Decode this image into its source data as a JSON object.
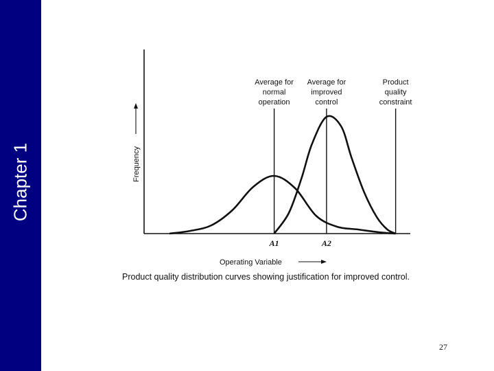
{
  "slide": {
    "sidebar_title": "Chapter 1",
    "caption": "Product quality distribution curves showing justification for improved control.",
    "page_number": "27"
  },
  "chart_data": {
    "type": "line",
    "title": "",
    "xlabel": "Operating Variable",
    "ylabel": "Frequency",
    "x_ticks": [
      "A1",
      "A2"
    ],
    "x_tick_values": [
      0.35,
      0.6
    ],
    "xlim": [
      -0.15,
      1.0
    ],
    "ylim": [
      0,
      1.0
    ],
    "grid": false,
    "series": [
      {
        "x": [
          -0.15,
          -0.05,
          0.05,
          0.15,
          0.25,
          0.35,
          0.45,
          0.55,
          0.65,
          0.75,
          0.85,
          0.93
        ],
        "y": [
          0.0,
          0.02,
          0.06,
          0.17,
          0.34,
          0.42,
          0.33,
          0.13,
          0.05,
          0.03,
          0.01,
          0.0
        ]
      },
      {
        "x": [
          0.35,
          0.42,
          0.48,
          0.53,
          0.6,
          0.67,
          0.72,
          0.78,
          0.84,
          0.89,
          0.93
        ],
        "y": [
          0.0,
          0.15,
          0.4,
          0.65,
          0.85,
          0.78,
          0.55,
          0.3,
          0.12,
          0.03,
          0.0
        ]
      }
    ],
    "reference_lines": [
      {
        "x": 0.35,
        "label": [
          "Average for",
          "normal",
          "operation"
        ]
      },
      {
        "x": 0.6,
        "label": [
          "Average for",
          "improved",
          "control"
        ]
      },
      {
        "x": 0.93,
        "label": [
          "Product",
          "quality",
          "constraint"
        ]
      }
    ]
  }
}
